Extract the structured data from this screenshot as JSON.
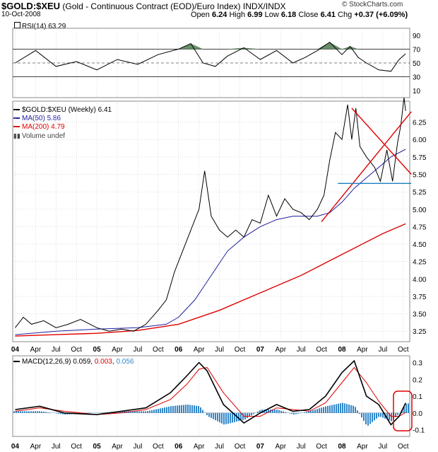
{
  "header": {
    "symbol": "$GOLD:$XEU",
    "description": "(Gold - Continuous Contract (EOD)/Euro Index)",
    "exchange": "INDX/INDX",
    "date": "10-Oct-2008",
    "copyright": "© StockCharts.com",
    "open_label": "Open",
    "open": "6.24",
    "high_label": "High",
    "high": "6.99",
    "low_label": "Low",
    "low": "6.18",
    "close_label": "Close",
    "close": "6.41",
    "chg_label": "Chg",
    "chg": "+0.37 (+6.09%)"
  },
  "colors": {
    "price": "#000000",
    "ma50": "#1f1f9e",
    "ma200": "#e00000",
    "trend": "#e00000",
    "support": "#1f7fc0",
    "macd_hist": "#2f86c8",
    "rsi_fill": "#4f7a4f",
    "grid": "#c8c8c8"
  },
  "chart_data": [
    {
      "type": "line",
      "panel": "rsi",
      "title": "RSI(14) 63.29",
      "label": "RSI(14)",
      "last_value": "63.29",
      "yticks": [
        10,
        30,
        50,
        70,
        90
      ],
      "ylim": [
        0,
        100
      ],
      "levels": [
        30,
        50,
        70
      ],
      "x": [
        2004.0,
        2004.25,
        2004.5,
        2004.75,
        2005.0,
        2005.25,
        2005.5,
        2005.75,
        2006.0,
        2006.15,
        2006.3,
        2006.45,
        2006.6,
        2006.8,
        2007.0,
        2007.2,
        2007.4,
        2007.55,
        2007.7,
        2007.85,
        2008.0,
        2008.1,
        2008.2,
        2008.3,
        2008.45,
        2008.6,
        2008.7,
        2008.78
      ],
      "values": [
        50,
        68,
        45,
        52,
        40,
        55,
        48,
        62,
        70,
        78,
        50,
        45,
        60,
        72,
        55,
        68,
        50,
        58,
        68,
        80,
        62,
        74,
        58,
        50,
        40,
        38,
        55,
        63.29
      ]
    },
    {
      "type": "line",
      "panel": "price",
      "title": "$GOLD:$XEU (Weekly) 6.41",
      "x_ticks": [
        "04",
        "Apr",
        "Jul",
        "Oct",
        "05",
        "Apr",
        "Jul",
        "Oct",
        "06",
        "Apr",
        "Jul",
        "Oct",
        "07",
        "Apr",
        "Jul",
        "Oct",
        "08",
        "Apr",
        "Jul",
        "Oct"
      ],
      "yticks": [
        "3.25",
        "3.50",
        "3.75",
        "4.00",
        "4.25",
        "4.50",
        "4.75",
        "5.00",
        "5.25",
        "5.50",
        "5.75",
        "6.00",
        "6.25"
      ],
      "ylim": [
        3.1,
        6.55
      ],
      "series": [
        {
          "name": "$GOLD:$XEU (Weekly)",
          "last": "6.41",
          "x": [
            2004.0,
            2004.1,
            2004.2,
            2004.35,
            2004.5,
            2004.65,
            2004.8,
            2005.0,
            2005.15,
            2005.3,
            2005.45,
            2005.6,
            2005.75,
            2005.85,
            2005.95,
            2006.05,
            2006.15,
            2006.25,
            2006.32,
            2006.4,
            2006.5,
            2006.6,
            2006.7,
            2006.8,
            2006.9,
            2007.0,
            2007.1,
            2007.2,
            2007.3,
            2007.4,
            2007.5,
            2007.6,
            2007.7,
            2007.78,
            2007.85,
            2007.92,
            2008.0,
            2008.07,
            2008.12,
            2008.17,
            2008.22,
            2008.3,
            2008.4,
            2008.47,
            2008.55,
            2008.62,
            2008.68,
            2008.72,
            2008.76,
            2008.78
          ],
          "values": [
            3.3,
            3.45,
            3.35,
            3.4,
            3.3,
            3.35,
            3.42,
            3.3,
            3.25,
            3.28,
            3.25,
            3.35,
            3.55,
            3.7,
            4.1,
            4.4,
            4.7,
            5.0,
            5.55,
            4.9,
            4.7,
            4.6,
            4.7,
            4.6,
            4.85,
            4.8,
            5.2,
            4.9,
            5.15,
            5.0,
            4.95,
            4.85,
            5.0,
            5.2,
            5.7,
            6.1,
            6.0,
            6.5,
            6.0,
            6.45,
            5.9,
            5.75,
            5.6,
            5.4,
            5.85,
            5.4,
            5.95,
            6.2,
            6.6,
            6.41
          ]
        },
        {
          "name": "MA(50)",
          "last": "5.86",
          "x": [
            2004.0,
            2004.5,
            2005.0,
            2005.5,
            2005.85,
            2006.0,
            2006.2,
            2006.4,
            2006.6,
            2006.8,
            2007.0,
            2007.2,
            2007.4,
            2007.55,
            2007.7,
            2007.85,
            2008.0,
            2008.15,
            2008.3,
            2008.45,
            2008.6,
            2008.78
          ],
          "values": [
            3.2,
            3.25,
            3.28,
            3.3,
            3.35,
            3.45,
            3.7,
            4.05,
            4.4,
            4.6,
            4.75,
            4.85,
            4.9,
            4.9,
            4.9,
            4.95,
            5.1,
            5.3,
            5.45,
            5.6,
            5.75,
            5.86
          ]
        },
        {
          "name": "MA(200)",
          "last": "4.79",
          "x": [
            2004.0,
            2004.5,
            2005.0,
            2005.5,
            2006.0,
            2006.5,
            2007.0,
            2007.5,
            2008.0,
            2008.5,
            2008.78
          ],
          "values": [
            3.18,
            3.2,
            3.22,
            3.26,
            3.35,
            3.55,
            3.8,
            4.05,
            4.35,
            4.65,
            4.79
          ]
        },
        {
          "name": "Volume undef",
          "last": ""
        }
      ],
      "annotations": [
        {
          "type": "trendline",
          "from": [
            2007.75,
            4.82
          ],
          "to": [
            2008.85,
            6.4
          ]
        },
        {
          "type": "trendline",
          "from": [
            2008.12,
            6.45
          ],
          "to": [
            2008.85,
            5.5
          ]
        },
        {
          "type": "support",
          "from": [
            2007.95,
            5.37
          ],
          "to": [
            2008.85,
            5.37
          ]
        }
      ]
    },
    {
      "type": "bar",
      "panel": "macd",
      "title": "MACD(12,26,9) 0.059, 0.003, 0.056",
      "label": "MACD(12,26,9)",
      "macd_value": "0.059",
      "signal_value": "0.003",
      "hist_value": "0.056",
      "yticks": [
        "-0.1",
        "0.0",
        "0.1",
        "0.2",
        "0.3"
      ],
      "ylim": [
        -0.14,
        0.34
      ],
      "x": [
        2004.0,
        2004.3,
        2004.6,
        2005.0,
        2005.3,
        2005.6,
        2005.9,
        2006.1,
        2006.25,
        2006.35,
        2006.55,
        2006.8,
        2007.0,
        2007.2,
        2007.4,
        2007.6,
        2007.8,
        2008.0,
        2008.15,
        2008.3,
        2008.45,
        2008.6,
        2008.7,
        2008.78
      ],
      "series": [
        {
          "name": "MACD",
          "values": [
            0.02,
            0.04,
            0.0,
            -0.01,
            0.01,
            0.03,
            0.12,
            0.22,
            0.3,
            0.25,
            0.05,
            -0.06,
            0.0,
            0.05,
            0.01,
            0.02,
            0.1,
            0.24,
            0.31,
            0.1,
            0.05,
            -0.07,
            -0.02,
            0.059
          ]
        },
        {
          "name": "Signal",
          "values": [
            0.01,
            0.03,
            0.01,
            -0.01,
            0.0,
            0.02,
            0.08,
            0.17,
            0.26,
            0.27,
            0.12,
            -0.02,
            -0.02,
            0.03,
            0.02,
            0.01,
            0.06,
            0.18,
            0.27,
            0.18,
            0.07,
            -0.02,
            -0.02,
            0.003
          ]
        },
        {
          "name": "Histogram",
          "values": [
            0.01,
            0.01,
            -0.01,
            0.0,
            0.01,
            0.01,
            0.04,
            0.05,
            0.04,
            -0.02,
            -0.07,
            -0.04,
            0.02,
            0.02,
            -0.01,
            0.01,
            0.04,
            0.06,
            0.04,
            -0.08,
            -0.02,
            -0.05,
            0.0,
            0.056
          ]
        }
      ]
    }
  ]
}
